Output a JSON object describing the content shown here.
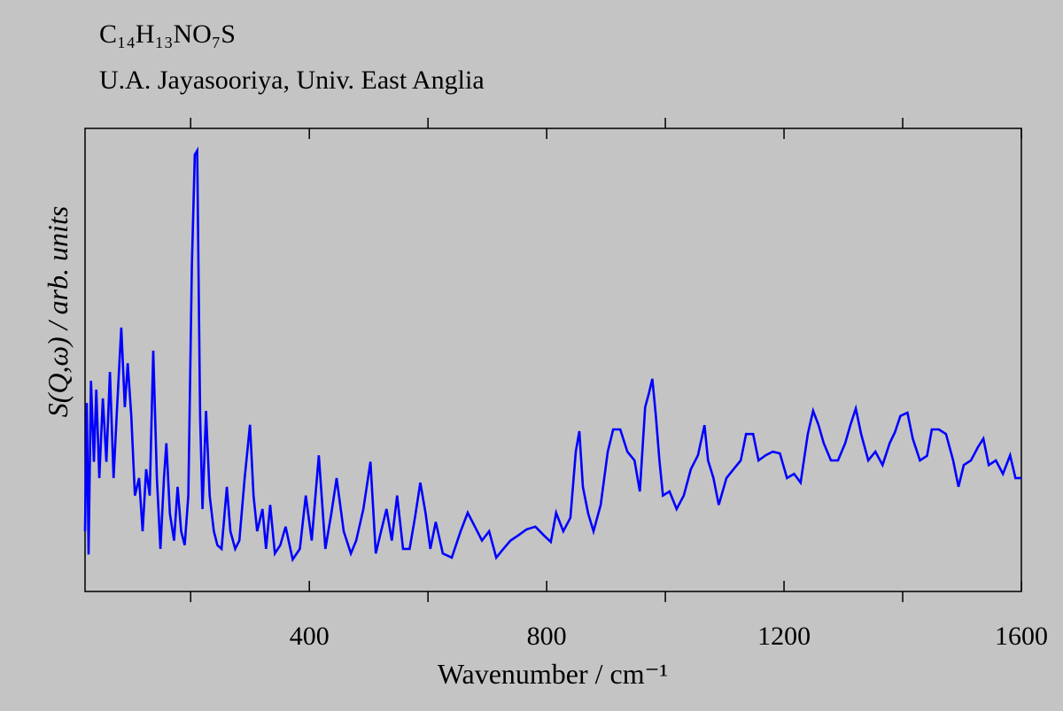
{
  "chart_data": {
    "type": "line",
    "title": "C₁₄H₁₃NO₇S",
    "subtitle": "U.A. Jayasooriya, Univ. East Anglia",
    "xlabel": "Wavenumber / cm⁻¹",
    "ylabel": "S(Q,ω) / arb. units",
    "xlim": [
      22,
      1600
    ],
    "ylim": [
      0,
      100
    ],
    "xticks": [
      400,
      800,
      1200,
      1600
    ],
    "xminorticks": [
      200,
      600,
      1000,
      1400
    ],
    "series": [
      {
        "color": "#0000ff",
        "x": [
          22,
          25,
          28,
          32,
          37,
          41,
          46,
          52,
          58,
          64,
          70,
          76,
          83,
          89,
          94,
          100,
          106,
          113,
          119,
          125,
          131,
          137,
          143,
          149,
          155,
          159,
          165,
          172,
          178,
          184,
          190,
          196,
          202,
          207,
          211,
          216,
          220,
          226,
          232,
          239,
          245,
          252,
          261,
          267,
          275,
          282,
          291,
          300,
          306,
          312,
          321,
          327,
          334,
          342,
          351,
          360,
          372,
          384,
          394,
          404,
          416,
          427,
          437,
          446,
          458,
          470,
          479,
          491,
          503,
          512,
          521,
          530,
          539,
          548,
          558,
          569,
          578,
          587,
          596,
          604,
          613,
          625,
          640,
          655,
          667,
          679,
          691,
          703,
          715,
          727,
          739,
          751,
          766,
          781,
          796,
          807,
          816,
          828,
          840,
          849,
          855,
          861,
          870,
          879,
          891,
          903,
          912,
          924,
          936,
          948,
          957,
          966,
          972,
          978,
          984,
          990,
          996,
          1007,
          1019,
          1031,
          1043,
          1055,
          1066,
          1072,
          1081,
          1090,
          1103,
          1115,
          1127,
          1136,
          1148,
          1157,
          1169,
          1181,
          1193,
          1205,
          1217,
          1228,
          1240,
          1249,
          1258,
          1267,
          1279,
          1291,
          1303,
          1312,
          1321,
          1330,
          1342,
          1354,
          1366,
          1378,
          1387,
          1396,
          1408,
          1417,
          1429,
          1441,
          1449,
          1461,
          1473,
          1485,
          1494,
          1503,
          1515,
          1527,
          1536,
          1545,
          1557,
          1569,
          1581,
          1590,
          1600
        ],
        "values": [
          13,
          40.7,
          8,
          45.5,
          28,
          43.6,
          24.5,
          41.7,
          28,
          47.4,
          24.5,
          39.8,
          57,
          39.8,
          49.3,
          37.9,
          20.7,
          24.5,
          13,
          26.4,
          20.7,
          52,
          24.5,
          9.2,
          24.5,
          32,
          16.8,
          11,
          22.6,
          13,
          10,
          20.7,
          70.4,
          94.3,
          95.2,
          37.9,
          17.8,
          39,
          20.7,
          13,
          10,
          9.2,
          22.6,
          13,
          9.2,
          11,
          24.5,
          36,
          20.7,
          13,
          17.8,
          9.2,
          18.7,
          8.2,
          10,
          14,
          6.9,
          9.2,
          20.7,
          11,
          29.4,
          9.2,
          16.8,
          24.5,
          13,
          8.2,
          11,
          17.8,
          28,
          8.2,
          13,
          17.8,
          11,
          20.7,
          9.2,
          9.2,
          15.9,
          23.5,
          16.8,
          9.2,
          15,
          8.2,
          7.3,
          13,
          17,
          14,
          11,
          13,
          7.3,
          9.2,
          11,
          12,
          13.4,
          14,
          12,
          10.7,
          17,
          13,
          15.9,
          30.2,
          34.6,
          22.6,
          16.8,
          13,
          18.7,
          30.2,
          35,
          35,
          30.2,
          28.3,
          21.6,
          39.8,
          42.6,
          45.9,
          37.9,
          28.3,
          20.7,
          21.6,
          17.8,
          20.7,
          26.4,
          29.4,
          35.9,
          28.3,
          24.5,
          18.7,
          24.5,
          26.4,
          28.3,
          34,
          34,
          28.3,
          29.4,
          30.2,
          29.8,
          24.5,
          25.4,
          23.5,
          34,
          39,
          36,
          32,
          28.3,
          28.3,
          32,
          36,
          39.5,
          34,
          28.3,
          30.2,
          27.3,
          32,
          34.4,
          37.9,
          38.6,
          33,
          28.3,
          29.3,
          35,
          35,
          34,
          28.3,
          22.6,
          27.3,
          28.3,
          31.2,
          33,
          27.3,
          28.3,
          25.4,
          29.4,
          24.5,
          24.5
        ]
      }
    ]
  }
}
